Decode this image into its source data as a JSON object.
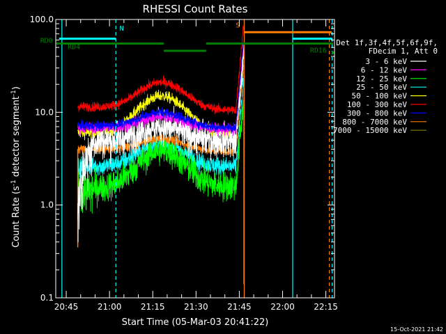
{
  "chart_data": {
    "type": "line",
    "title": "RHESSI Count Rates",
    "xlabel": "Start Time (05-Mar-03 20:41:22)",
    "ylabel_main": "Count Rate (s",
    "ylabel_sup1": "-1",
    "ylabel_mid": " detector segment",
    "ylabel_sup2": "-1",
    "ylabel_end": ")",
    "y_scale": "log",
    "ylim": [
      0.1,
      100
    ],
    "y_ticks": [
      {
        "value": 0.1,
        "label": "0.1"
      },
      {
        "value": 1,
        "label": "1.0"
      },
      {
        "value": 10,
        "label": "10.0"
      },
      {
        "value": 100,
        "label": "100.0"
      }
    ],
    "xlim_min": [
      41.367,
      138.0
    ],
    "x_ticks": [
      {
        "value": 45,
        "label": "20:45"
      },
      {
        "value": 60,
        "label": "21:00"
      },
      {
        "value": 75,
        "label": "21:15"
      },
      {
        "value": 90,
        "label": "21:30"
      },
      {
        "value": 105,
        "label": "21:45"
      },
      {
        "value": 120,
        "label": "22:00"
      },
      {
        "value": 135,
        "label": "22:15"
      }
    ],
    "legend_header": [
      "Det 1f,3f,4f,5f,6f,9f,",
      "FDecim 1, Att 0"
    ],
    "series": [
      {
        "name": "3 - 6 keV",
        "color": "#ffffff",
        "base": 4.8,
        "peak": 7.0,
        "end": 5.0,
        "noise": 0.18,
        "early": [
          1.0,
          0.55
        ],
        "step": 0
      },
      {
        "name": "6 - 12 keV",
        "color": "#ff00ff",
        "base": 6.8,
        "peak": 9.0,
        "end": 6.5,
        "noise": 0.06,
        "early": null,
        "step": 0
      },
      {
        "name": "12 - 25 keV",
        "color": "#00ff00",
        "base": 1.5,
        "peak": 3.9,
        "end": 1.6,
        "noise": 0.16,
        "early": [
          1.4,
          0.7
        ],
        "step": 0
      },
      {
        "name": "25 - 50 keV",
        "color": "#00ffff",
        "base": 2.6,
        "peak": 4.6,
        "end": 2.6,
        "noise": 0.1,
        "early": null,
        "step": 0
      },
      {
        "name": "50 - 100 keV",
        "color": "#ffff00",
        "base": 6.0,
        "peak": 15.0,
        "end": 6.0,
        "noise": 0.06,
        "early": null,
        "step": 0
      },
      {
        "name": "100 - 300 keV",
        "color": "#ff0000",
        "base": 11.5,
        "peak": 21.0,
        "end": 10.5,
        "noise": 0.05,
        "early": null,
        "step": 0
      },
      {
        "name": "300 - 800 keV",
        "color": "#0000ff",
        "base": 7.2,
        "peak": 10.0,
        "end": 6.8,
        "noise": 0.05,
        "early": null,
        "step": 0
      },
      {
        "name": "800 - 7000 keV",
        "color": "#ff8000",
        "base": 4.0,
        "peak": 5.2,
        "end": 3.8,
        "noise": 0.05,
        "early": null,
        "step": 1
      },
      {
        "name": "7000 - 15000 keV",
        "color": "#808000",
        "base": 4.0,
        "peak": 4.0,
        "end": 4.0,
        "noise": 0.0,
        "early": null,
        "step": 0,
        "hidden": true
      }
    ],
    "data_start_min": 49.0,
    "data_end_min": 106.5,
    "flare_start_min": 103.8,
    "flare_peak_min": 105.8,
    "gap_start_min": 106.6,
    "gap_end_min": 106.9,
    "peak_center_min": 78.0,
    "peak_width_min": 10.0,
    "vlines": [
      {
        "x": 43.5,
        "color": "#00ffff",
        "style": "solid"
      },
      {
        "x": 62.2,
        "color": "#00ffff",
        "style": "dash"
      },
      {
        "x": 123.5,
        "color": "#00ffff",
        "style": "solid"
      },
      {
        "x": 106.7,
        "color": "#ff8000",
        "style": "solid"
      },
      {
        "x": 136.2,
        "color": "#ff8000",
        "style": "dash"
      },
      {
        "x": 137.2,
        "color": "#00ffff",
        "style": "dash"
      }
    ],
    "bars": [
      {
        "x0": 42.5,
        "x1": 62.2,
        "y": 62,
        "color": "#00ffff",
        "width": 3
      },
      {
        "x0": 123.5,
        "x1": 137.2,
        "y": 62,
        "color": "#00ffff",
        "width": 3
      },
      {
        "x0": 106.7,
        "x1": 137.0,
        "y": 73,
        "color": "#ff8000",
        "width": 3
      },
      {
        "x0": 42.5,
        "x1": 78.8,
        "y": 55,
        "color": "#008000",
        "width": 3
      },
      {
        "x0": 78.8,
        "x1": 93.5,
        "y": 46,
        "color": "#008000",
        "width": 3
      },
      {
        "x0": 93.5,
        "x1": 137.5,
        "y": 55,
        "color": "#008000",
        "width": 3
      }
    ],
    "annotations": [
      {
        "text": "N",
        "x": 63.5,
        "y": 76,
        "color": "#00ffff"
      },
      {
        "text": "S",
        "x": 103.8,
        "y": 82,
        "color": "#ff8000"
      },
      {
        "text": "RD0",
        "x": 36.0,
        "y": 56,
        "color": "#008000"
      },
      {
        "text": "RD4",
        "x": 45.5,
        "y": 48,
        "color": "#008000"
      },
      {
        "text": "RD16",
        "x": 129.5,
        "y": 44,
        "color": "#008000"
      }
    ],
    "footer": "15-Oct-2021 21:42"
  }
}
